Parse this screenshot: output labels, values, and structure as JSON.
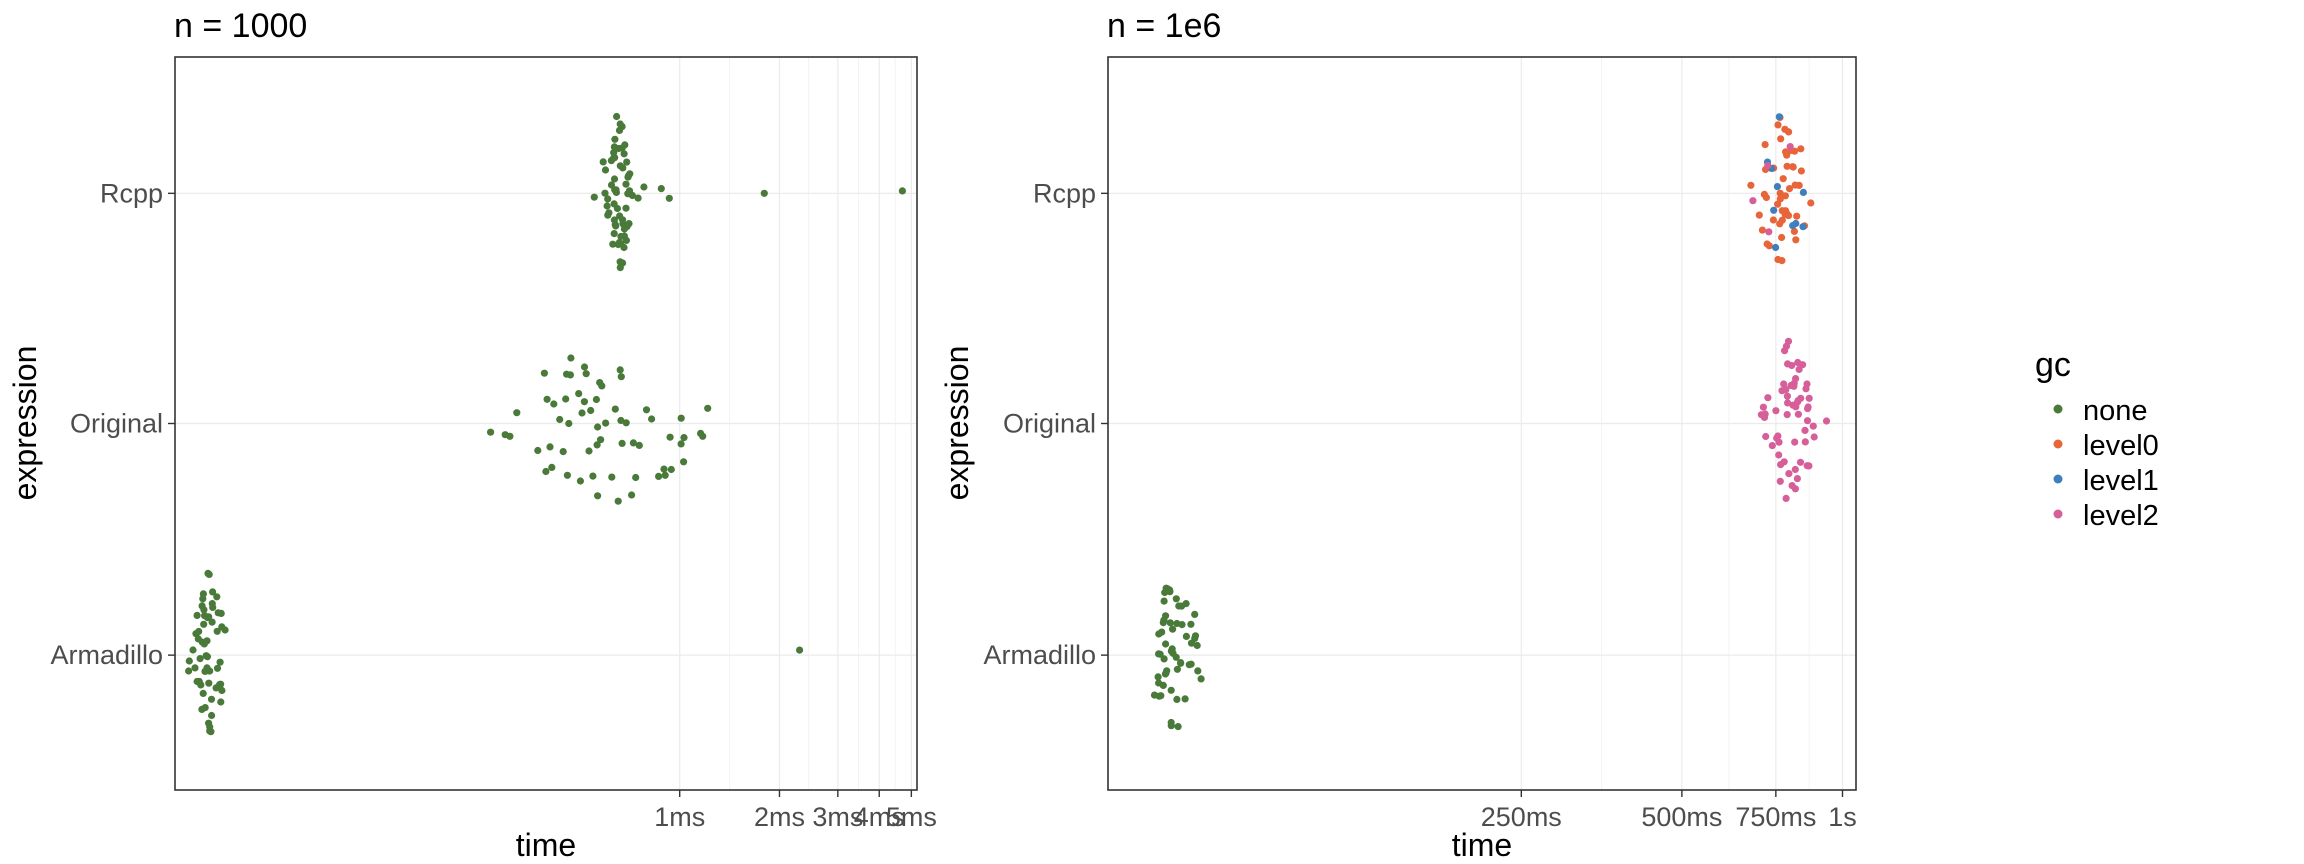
{
  "chart_data": [
    {
      "type": "scatter",
      "title": "n = 1000",
      "xlabel": "time",
      "ylabel": "expression",
      "x_scale": "log10",
      "xlim_seconds": [
        3e-05,
        0.0052
      ],
      "x_ticks": [
        {
          "label": "1ms",
          "seconds": 0.001
        },
        {
          "label": "2ms",
          "seconds": 0.002
        },
        {
          "label": "3ms",
          "seconds": 0.003
        },
        {
          "label": "4ms",
          "seconds": 0.004
        },
        {
          "label": "5ms",
          "seconds": 0.005
        }
      ],
      "categories": [
        "Armadillo",
        "Original",
        "Rcpp"
      ],
      "grid": true,
      "series": [
        {
          "category": "Rcpp",
          "gc": "none",
          "approx_median_seconds": 0.00065,
          "n_points": 62,
          "outliers_seconds": [
            0.00078,
            0.00088,
            0.00093,
            0.0018,
            0.0047
          ]
        },
        {
          "category": "Original",
          "gc": "none",
          "approx_median_seconds": 0.0006,
          "n_points": 62,
          "range_seconds": [
            0.00032,
            0.0013
          ]
        },
        {
          "category": "Armadillo",
          "gc": "none",
          "approx_median_seconds": 3.8e-05,
          "n_points": 58,
          "outliers_seconds": [
            0.0023
          ]
        }
      ]
    },
    {
      "type": "scatter",
      "title": "n = 1e6",
      "xlabel": "time",
      "ylabel": "expression",
      "x_scale": "log10",
      "xlim_seconds": [
        0.042,
        1.06
      ],
      "x_ticks": [
        {
          "label": "250ms",
          "seconds": 0.25
        },
        {
          "label": "500ms",
          "seconds": 0.5
        },
        {
          "label": "750ms",
          "seconds": 0.75
        },
        {
          "label": "1s",
          "seconds": 1.0
        }
      ],
      "categories": [
        "Armadillo",
        "Original",
        "Rcpp"
      ],
      "grid": true,
      "series": [
        {
          "category": "Rcpp",
          "gc_counts": {
            "level0": 48,
            "level1": 10,
            "level2": 4
          },
          "approx_median_seconds": 0.77,
          "range_seconds": [
            0.72,
            0.9
          ]
        },
        {
          "category": "Original",
          "gc_counts": {
            "level2": 60
          },
          "approx_median_seconds": 0.8,
          "range_seconds": [
            0.76,
            0.92
          ]
        },
        {
          "category": "Armadillo",
          "gc_counts": {
            "none": 56
          },
          "approx_median_seconds": 0.056,
          "range_seconds": [
            0.05,
            0.1
          ]
        }
      ]
    }
  ],
  "legend": {
    "title": "gc",
    "position": "right",
    "items": [
      {
        "label": "none",
        "color": "#4a7a3a"
      },
      {
        "label": "level0",
        "color": "#e8653a"
      },
      {
        "label": "level1",
        "color": "#3f7fbd"
      },
      {
        "label": "level2",
        "color": "#d65f9a"
      }
    ]
  }
}
